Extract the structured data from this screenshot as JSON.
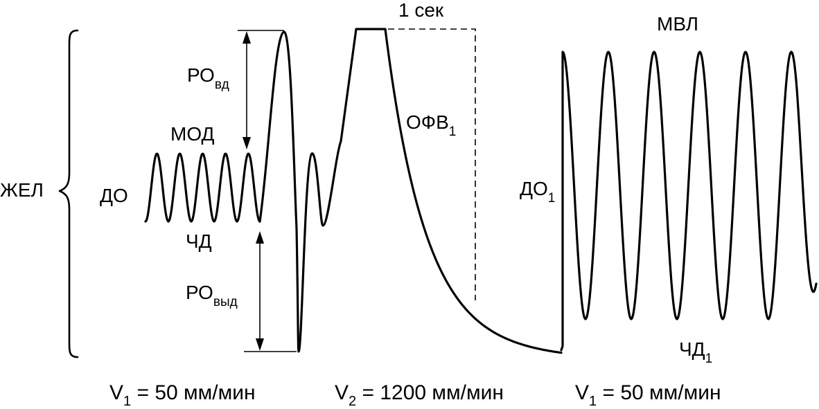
{
  "diagram": {
    "vital_capacity_label": "ЖЕЛ",
    "tidal_volume_label": "ДО",
    "minute_volume_label": "МОД",
    "resp_rate_label": "ЧД",
    "inspiratory_reserve": {
      "main": "РО",
      "sub": "вд"
    },
    "expiratory_reserve": {
      "main": "РО",
      "sub": "выд"
    },
    "one_second_label": "1 сек",
    "fev1": {
      "main": "ОФВ",
      "sub": "1"
    },
    "mvv_label": "МВЛ",
    "tidal_volume_1": {
      "main": "ДО",
      "sub": "1"
    },
    "resp_rate_1": {
      "main": "ЧД",
      "sub": "1"
    },
    "speeds": [
      {
        "pre": "V",
        "sub": "1",
        "post": " = 50 мм/мин"
      },
      {
        "pre": "V",
        "sub": "2",
        "post": " = 1200 мм/мин"
      },
      {
        "pre": "V",
        "sub": "1",
        "post": " = 50 мм/мин"
      }
    ]
  },
  "colors": {
    "stroke": "#000000",
    "background": "#ffffff"
  }
}
